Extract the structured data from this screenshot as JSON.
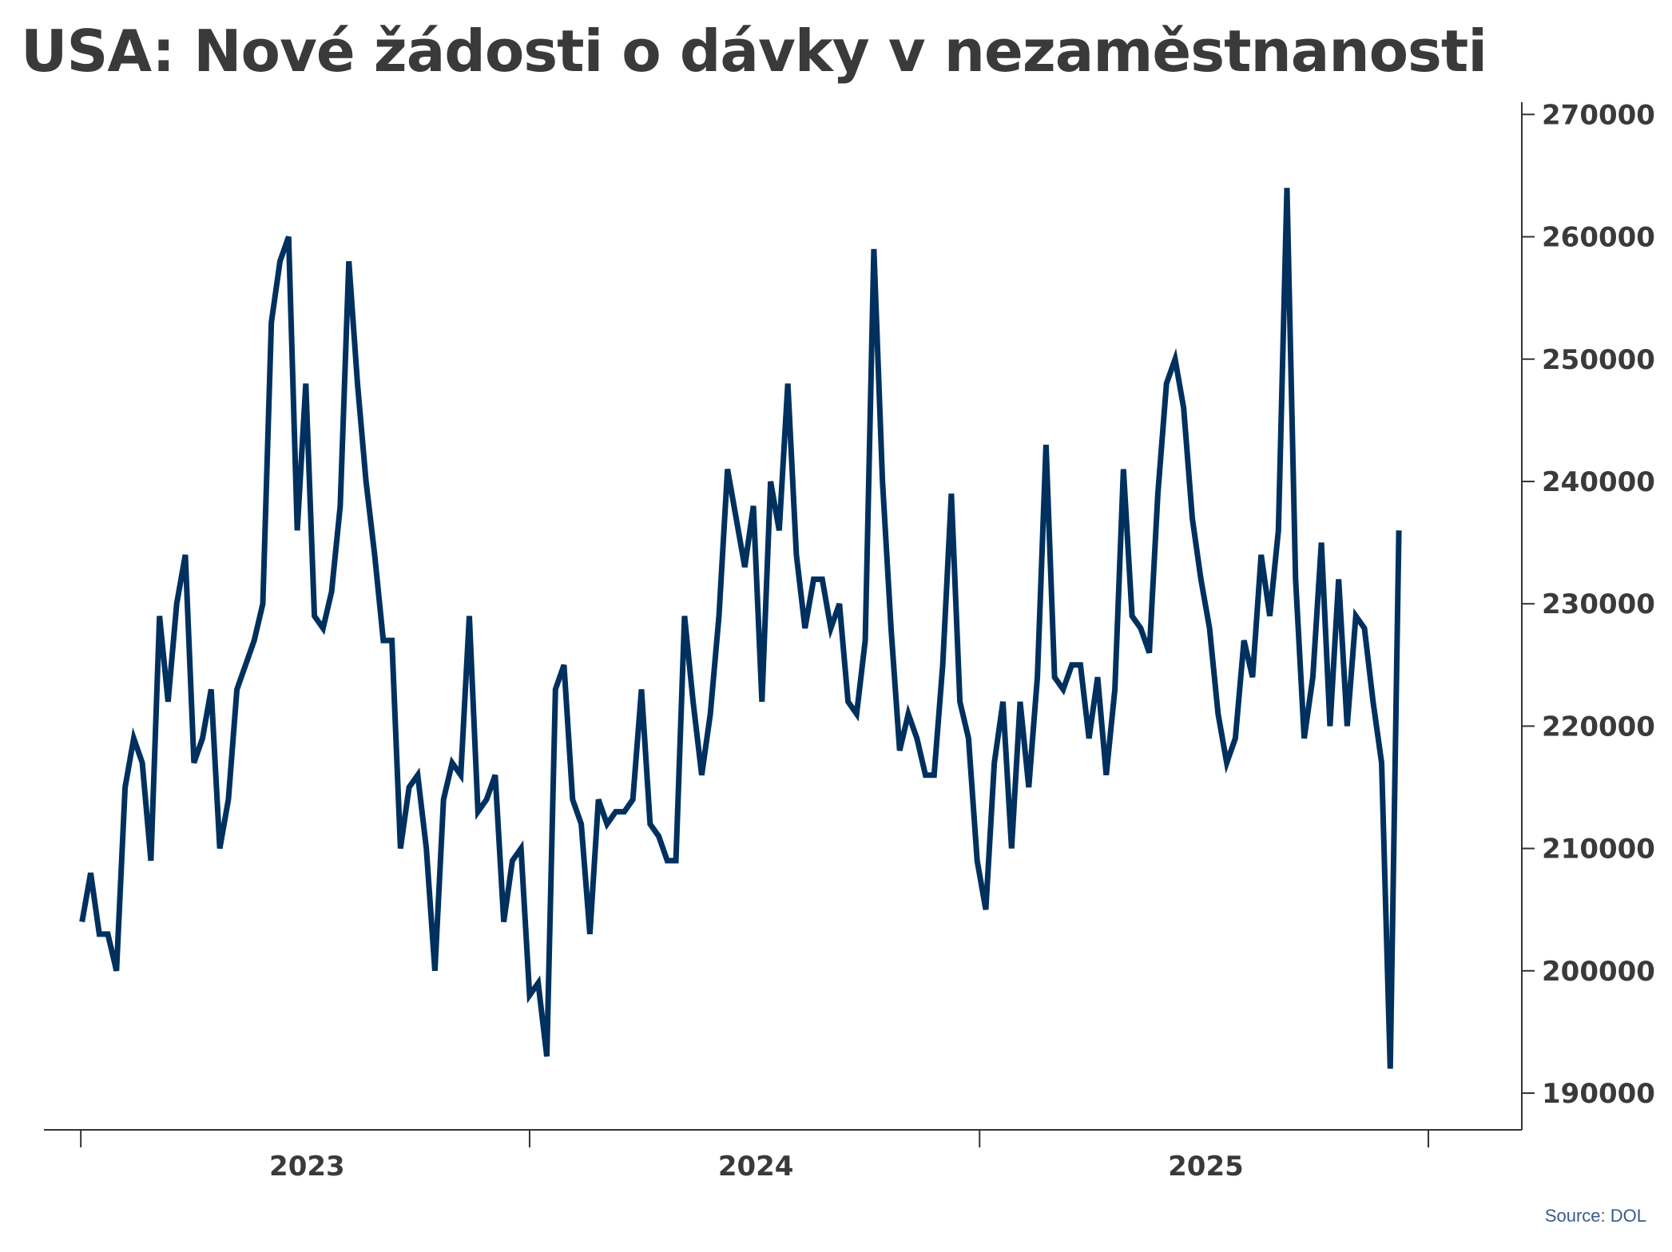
{
  "title": "USA: Nové žádosti o dávky v nezaměstnanosti",
  "source": "Source: DOL",
  "colors": {
    "line": "#00305e",
    "axis": "#333333",
    "text": "#3a3a3a",
    "source": "#3a5a8a"
  },
  "chart_data": {
    "type": "line",
    "title": "USA: Nové žádosti o dávky v nezaměstnanosti",
    "xlabel": "",
    "ylabel": "",
    "y_axis_side": "right",
    "grid": false,
    "legend": "none",
    "ylim": [
      187000,
      271000
    ],
    "xlim": [
      "2022-06-01",
      "2025-09-15"
    ],
    "yticks": [
      190000,
      200000,
      210000,
      220000,
      230000,
      240000,
      250000,
      260000,
      270000
    ],
    "ytick_labels": [
      "190000",
      "200000",
      "210000",
      "220000",
      "230000",
      "240000",
      "250000",
      "260000",
      "270000"
    ],
    "xtick_marks": [
      "2022-07-01",
      "2023-07-01",
      "2024-07-01",
      "2025-07-01"
    ],
    "xlabels": [
      {
        "label": "2023",
        "date": "2023-01-01"
      },
      {
        "label": "2024",
        "date": "2024-01-01"
      },
      {
        "label": "2025",
        "date": "2025-01-01"
      }
    ],
    "series": [
      {
        "start_date": "2022-07-02",
        "frequency": "weekly",
        "values": [
          204000,
          208000,
          203000,
          203000,
          200000,
          215000,
          219000,
          217000,
          209000,
          229000,
          222000,
          230000,
          234000,
          217000,
          219000,
          223000,
          210000,
          214000,
          223000,
          225000,
          227000,
          230000,
          253000,
          258000,
          260000,
          236000,
          248000,
          229000,
          228000,
          231000,
          238000,
          258000,
          248000,
          240000,
          234000,
          227000,
          227000,
          210000,
          215000,
          216000,
          210000,
          200000,
          214000,
          217000,
          216000,
          229000,
          213000,
          214000,
          216000,
          204000,
          209000,
          210000,
          198000,
          199000,
          193000,
          223000,
          225000,
          214000,
          212000,
          203000,
          214000,
          212000,
          213000,
          213000,
          214000,
          223000,
          212000,
          211000,
          209000,
          209000,
          229000,
          222000,
          216000,
          221000,
          229000,
          241000,
          237000,
          233000,
          238000,
          222000,
          240000,
          236000,
          248000,
          234000,
          228000,
          232000,
          232000,
          228000,
          230000,
          222000,
          221000,
          227000,
          259000,
          240000,
          228000,
          218000,
          221000,
          219000,
          216000,
          216000,
          225000,
          239000,
          222000,
          219000,
          209000,
          205000,
          217000,
          222000,
          210000,
          222000,
          215000,
          224000,
          243000,
          224000,
          223000,
          225000,
          225000,
          219000,
          224000,
          216000,
          223000,
          241000,
          229000,
          228000,
          226000,
          239000,
          248000,
          250000,
          246000,
          237000,
          232000,
          228000,
          221000,
          217000,
          219000,
          227000,
          224000,
          234000,
          229000,
          236000,
          264000,
          232000,
          219000,
          224000,
          235000,
          220000,
          232000,
          220000,
          229000,
          228000,
          222000,
          217000,
          192000,
          236000
        ]
      }
    ]
  }
}
